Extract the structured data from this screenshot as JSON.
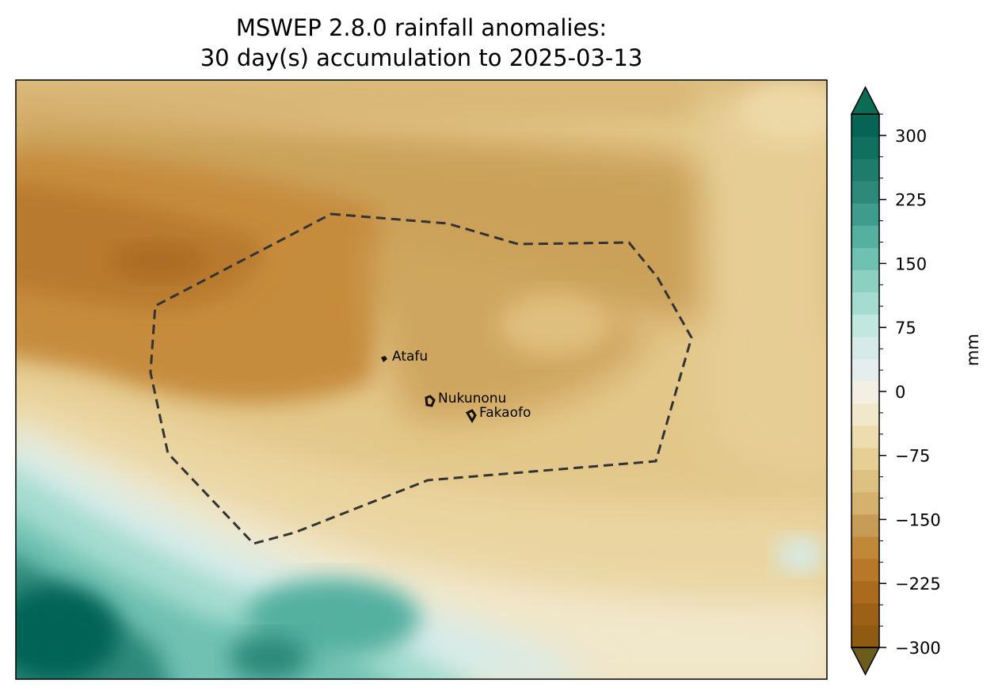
{
  "title": {
    "line1": "MSWEP 2.8.0 rainfall anomalies:",
    "line2": "30 day(s) accumulation to 2025-03-13"
  },
  "map": {
    "places": [
      {
        "name": "Atafu"
      },
      {
        "name": "Nukunonu"
      },
      {
        "name": "Fakaofo"
      }
    ],
    "boundary_style": "dashed",
    "boundary_color": "#333333"
  },
  "colorbar": {
    "unit": "mm",
    "ticks": [
      "300",
      "225",
      "150",
      "75",
      "0",
      "−75",
      "−150",
      "−225",
      "−300"
    ],
    "min": -300,
    "max": 300,
    "extend": "both",
    "colors": [
      "#8f5a12",
      "#9c6116",
      "#aa6b1d",
      "#b97829",
      "#c18838",
      "#c69c56",
      "#d4b26e",
      "#ddc182",
      "#e6cf95",
      "#eddcae",
      "#f1e7cb",
      "#f3f0e3",
      "#e6eded",
      "#d6ebe8",
      "#c0e8df",
      "#a4dccf",
      "#8bd0c1",
      "#6fc1b2",
      "#55b0a0",
      "#3f9c8d",
      "#2d8a7a",
      "#1d7c6b",
      "#0f7060",
      "#056455"
    ],
    "under_color": "#6b5c1c",
    "over_color": "#0a6b57"
  }
}
